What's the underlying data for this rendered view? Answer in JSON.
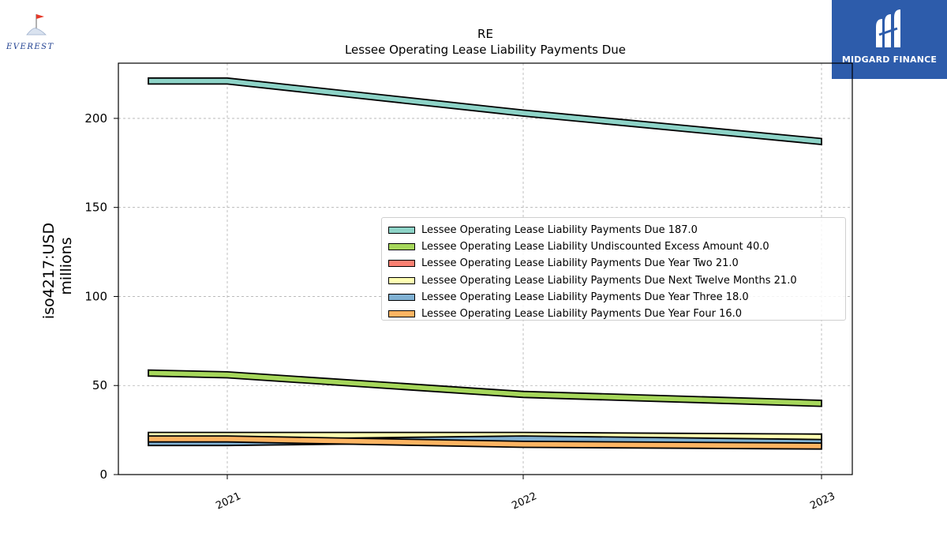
{
  "logos": {
    "left": {
      "text": "EVEREST"
    },
    "right": {
      "text": "MIDGARD FINANCE"
    }
  },
  "colors": {
    "teal": "#8dd3c7",
    "green": "#a6d75b",
    "salmon": "#fb8072",
    "yellow": "#ffffb3",
    "blue": "#80b1d3",
    "orange": "#fdb462",
    "grid": "#b0b0b0",
    "brand_blue": "#2d5cab"
  },
  "chart_data": {
    "type": "area",
    "title": "RE",
    "subtitle": "Lessee Operating Lease Liability Payments Due",
    "ylabel_line1": "iso4217:USD",
    "ylabel_line2": "millions",
    "x": [
      2020.73,
      2021,
      2022,
      2023
    ],
    "xticks": [
      "2021",
      "2022",
      "2023"
    ],
    "yticks": [
      "0",
      "50",
      "100",
      "150",
      "200"
    ],
    "ylim": [
      0,
      231
    ],
    "grid": true,
    "legend_position": "center-right",
    "series": [
      {
        "name": "Lessee Operating Lease Liability Payments Due",
        "label": "Lessee Operating Lease Liability Payments Due  187.0",
        "values": [
          221,
          221,
          203,
          187
        ],
        "color": "#8dd3c7"
      },
      {
        "name": "Lessee Operating Lease Liability Undiscounted Excess Amount",
        "label": "Lessee Operating Lease Liability Undiscounted Excess Amount  40.0",
        "values": [
          57,
          56,
          45,
          40
        ],
        "color": "#a6d75b"
      },
      {
        "name": "Lessee Operating Lease Liability Payments Due Year Two",
        "label": "Lessee Operating Lease Liability Payments Due Year Two  21.0",
        "values": [
          21,
          21,
          21,
          21
        ],
        "color": "#fb8072"
      },
      {
        "name": "Lessee Operating Lease Liability Payments Due Next Twelve Months",
        "label": "Lessee Operating Lease Liability Payments Due Next Twelve Months  21.0",
        "values": [
          22,
          22,
          22,
          21
        ],
        "color": "#ffffb3"
      },
      {
        "name": "Lessee Operating Lease Liability Payments Due Year Three",
        "label": "Lessee Operating Lease Liability Payments Due Year Three  18.0",
        "values": [
          18,
          18,
          20,
          18
        ],
        "color": "#80b1d3"
      },
      {
        "name": "Lessee Operating Lease Liability Payments Due Year Four",
        "label": "Lessee Operating Lease Liability Payments Due Year Four  16.0",
        "values": [
          20,
          20,
          17,
          16
        ],
        "color": "#fdb462"
      }
    ]
  }
}
